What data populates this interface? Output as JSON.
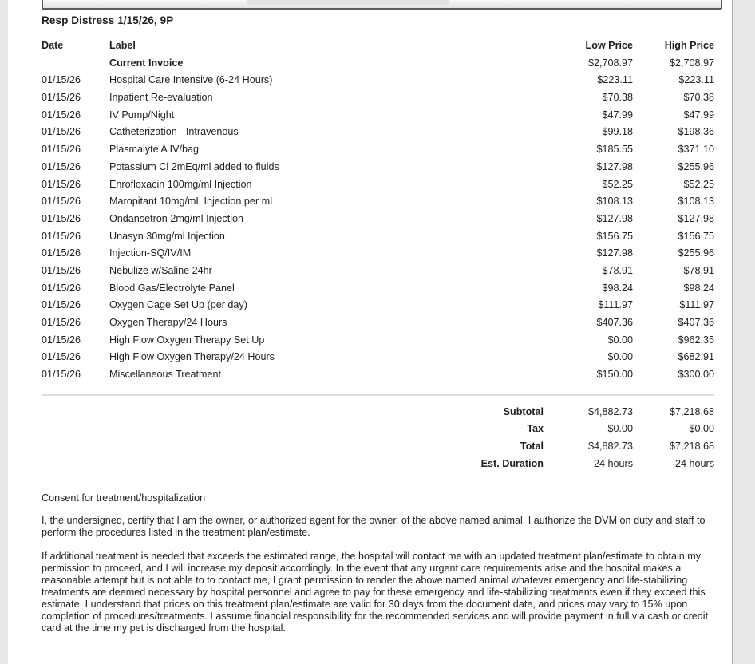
{
  "page": {
    "title": "Resp Distress 1/15/26, 9P"
  },
  "table": {
    "headers": {
      "date": "Date",
      "label": "Label",
      "low": "Low Price",
      "high": "High Price"
    },
    "rows": [
      {
        "date": "",
        "label": "Current Invoice",
        "low": "$2,708.97",
        "high": "$2,708.97",
        "bold": true
      },
      {
        "date": "01/15/26",
        "label": "Hospital Care Intensive (6-24 Hours)",
        "low": "$223.11",
        "high": "$223.11"
      },
      {
        "date": "01/15/26",
        "label": "Inpatient Re-evaluation",
        "low": "$70.38",
        "high": "$70.38"
      },
      {
        "date": "01/15/26",
        "label": "IV Pump/Night",
        "low": "$47.99",
        "high": "$47.99"
      },
      {
        "date": "01/15/26",
        "label": "Catheterization - Intravenous",
        "low": "$99.18",
        "high": "$198.36"
      },
      {
        "date": "01/15/26",
        "label": "Plasmalyte A IV/bag",
        "low": "$185.55",
        "high": "$371.10"
      },
      {
        "date": "01/15/26",
        "label": "Potassium Cl 2mEq/ml added to fluids",
        "low": "$127.98",
        "high": "$255.96"
      },
      {
        "date": "01/15/26",
        "label": "Enrofloxacin 100mg/ml Injection",
        "low": "$52.25",
        "high": "$52.25"
      },
      {
        "date": "01/15/26",
        "label": "Maropitant 10mg/mL Injection per mL",
        "low": "$108.13",
        "high": "$108.13"
      },
      {
        "date": "01/15/26",
        "label": "Ondansetron 2mg/ml Injection",
        "low": "$127.98",
        "high": "$127.98"
      },
      {
        "date": "01/15/26",
        "label": "Unasyn 30mg/ml Injection",
        "low": "$156.75",
        "high": "$156.75"
      },
      {
        "date": "01/15/26",
        "label": "Injection-SQ/IV/IM",
        "low": "$127.98",
        "high": "$255.96"
      },
      {
        "date": "01/15/26",
        "label": "Nebulize w/Saline 24hr",
        "low": "$78.91",
        "high": "$78.91"
      },
      {
        "date": "01/15/26",
        "label": "Blood Gas/Electrolyte Panel",
        "low": "$98.24",
        "high": "$98.24"
      },
      {
        "date": "01/15/26",
        "label": "Oxygen Cage Set Up (per day)",
        "low": "$111.97",
        "high": "$111.97"
      },
      {
        "date": "01/15/26",
        "label": "Oxygen Therapy/24 Hours",
        "low": "$407.36",
        "high": "$407.36"
      },
      {
        "date": "01/15/26",
        "label": "High Flow Oxygen Therapy Set Up",
        "low": "$0.00",
        "high": "$962.35"
      },
      {
        "date": "01/15/26",
        "label": "High Flow Oxygen Therapy/24 Hours",
        "low": "$0.00",
        "high": "$682.91"
      },
      {
        "date": "01/15/26",
        "label": "Miscellaneous Treatment",
        "low": "$150.00",
        "high": "$300.00"
      }
    ]
  },
  "summary": {
    "rows": [
      {
        "label": "Subtotal",
        "low": "$4,882.73",
        "high": "$7,218.68"
      },
      {
        "label": "Tax",
        "low": "$0.00",
        "high": "$0.00"
      },
      {
        "label": "Total",
        "low": "$4,882.73",
        "high": "$7,218.68"
      },
      {
        "label": "Est. Duration",
        "low": "24 hours",
        "high": "24 hours"
      }
    ]
  },
  "consent": {
    "heading": "Consent for treatment/hospitalization",
    "paragraph1": "I, the undersigned, certify that I am the owner, or authorized agent for the owner, of the above named animal. I authorize the DVM on duty and staff to perform the procedures listed in the treatment plan/estimate.",
    "paragraph2": "If additional treatment is needed that exceeds the estimated range, the hospital will contact me with an updated treatment plan/estimate to obtain my permission to proceed, and I will increase my deposit accordingly. In the event that any urgent care requirements arise and the hospital makes a reasonable attempt but is not able to to contact me, I grant permission to render the above named animal whatever emergency and life-stabilizing treatments are deemed necessary by hospital personnel and agree to pay for these emergency and life-stabilizing treatments even if they exceed this estimate. I understand that prices on this treatment plan/estimate are valid for 30 days from the document date, and prices may vary to 15% upon completion of procedures/treatments. I assume financial responsibility for the recommended services and will provide payment in full via cash or credit card at the time my pet is discharged from the hospital."
  },
  "colors": {
    "page_background": "#ffffff",
    "surround_background": "#e9e9e9",
    "text": "#1f1f1f",
    "divider": "#dcdcdc",
    "page_edge": "#aeaeae"
  }
}
